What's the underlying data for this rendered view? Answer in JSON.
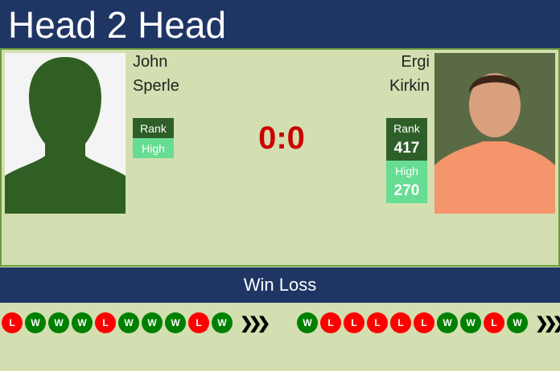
{
  "header": {
    "title": "Head 2 Head"
  },
  "player1": {
    "first": "John",
    "last": "Sperle",
    "rank_label": "Rank",
    "rank": "",
    "high_label": "High",
    "high": "",
    "form": [
      "L",
      "W",
      "W",
      "W",
      "L",
      "W",
      "W",
      "W",
      "L",
      "W"
    ]
  },
  "player2": {
    "first": "Ergi",
    "last": "Kirkin",
    "rank_label": "Rank",
    "rank": "417",
    "high_label": "High",
    "high": "270",
    "form": [
      "W",
      "L",
      "L",
      "L",
      "L",
      "L",
      "W",
      "W",
      "L",
      "W"
    ]
  },
  "score": "0:0",
  "section": {
    "win_loss": "Win Loss"
  },
  "colors": {
    "win": "#008000",
    "loss": "#ff0000",
    "header": "#1f3564"
  },
  "more_icon": "triple-chevron-right"
}
